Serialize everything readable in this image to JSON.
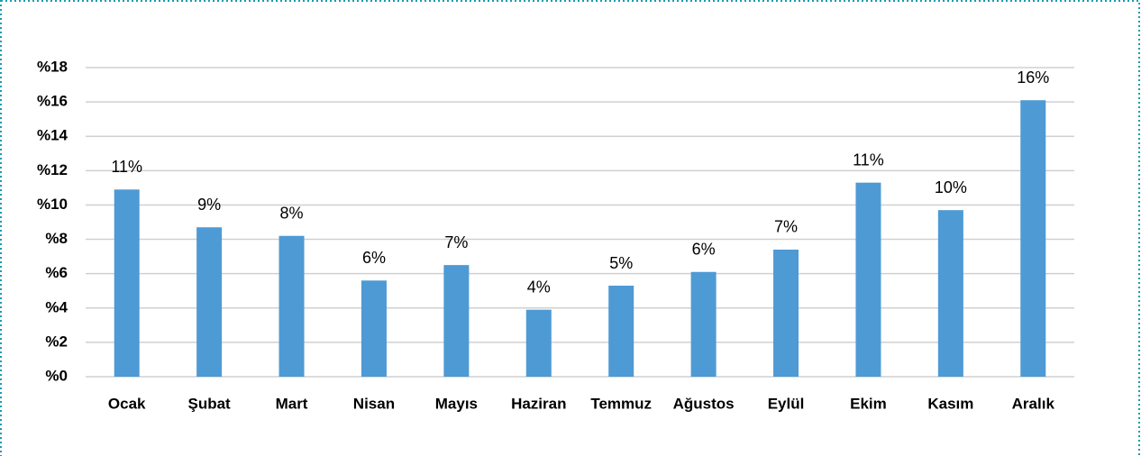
{
  "chart_data": {
    "type": "bar",
    "categories": [
      "Ocak",
      "Şubat",
      "Mart",
      "Nisan",
      "Mayıs",
      "Haziran",
      "Temmuz",
      "Ağustos",
      "Eylül",
      "Ekim",
      "Kasım",
      "Aralık"
    ],
    "values": [
      10.9,
      8.7,
      8.2,
      5.6,
      6.5,
      3.9,
      5.3,
      6.1,
      7.4,
      11.3,
      9.7,
      16.1
    ],
    "value_labels": [
      "11%",
      "9%",
      "8%",
      "6%",
      "7%",
      "4%",
      "5%",
      "6%",
      "7%",
      "11%",
      "10%",
      "16%"
    ],
    "color": "#4e9ad4",
    "ylim": [
      0,
      18
    ],
    "yticks": [
      {
        "value": 0,
        "label": "%0"
      },
      {
        "value": 2,
        "label": "%2"
      },
      {
        "value": 4,
        "label": "%4"
      },
      {
        "value": 6,
        "label": "%6"
      },
      {
        "value": 8,
        "label": "%8"
      },
      {
        "value": 10,
        "label": "%10"
      },
      {
        "value": 12,
        "label": "%12"
      },
      {
        "value": 14,
        "label": "%14"
      },
      {
        "value": 16,
        "label": "%16"
      },
      {
        "value": 18,
        "label": "%18"
      }
    ],
    "grid": true
  }
}
